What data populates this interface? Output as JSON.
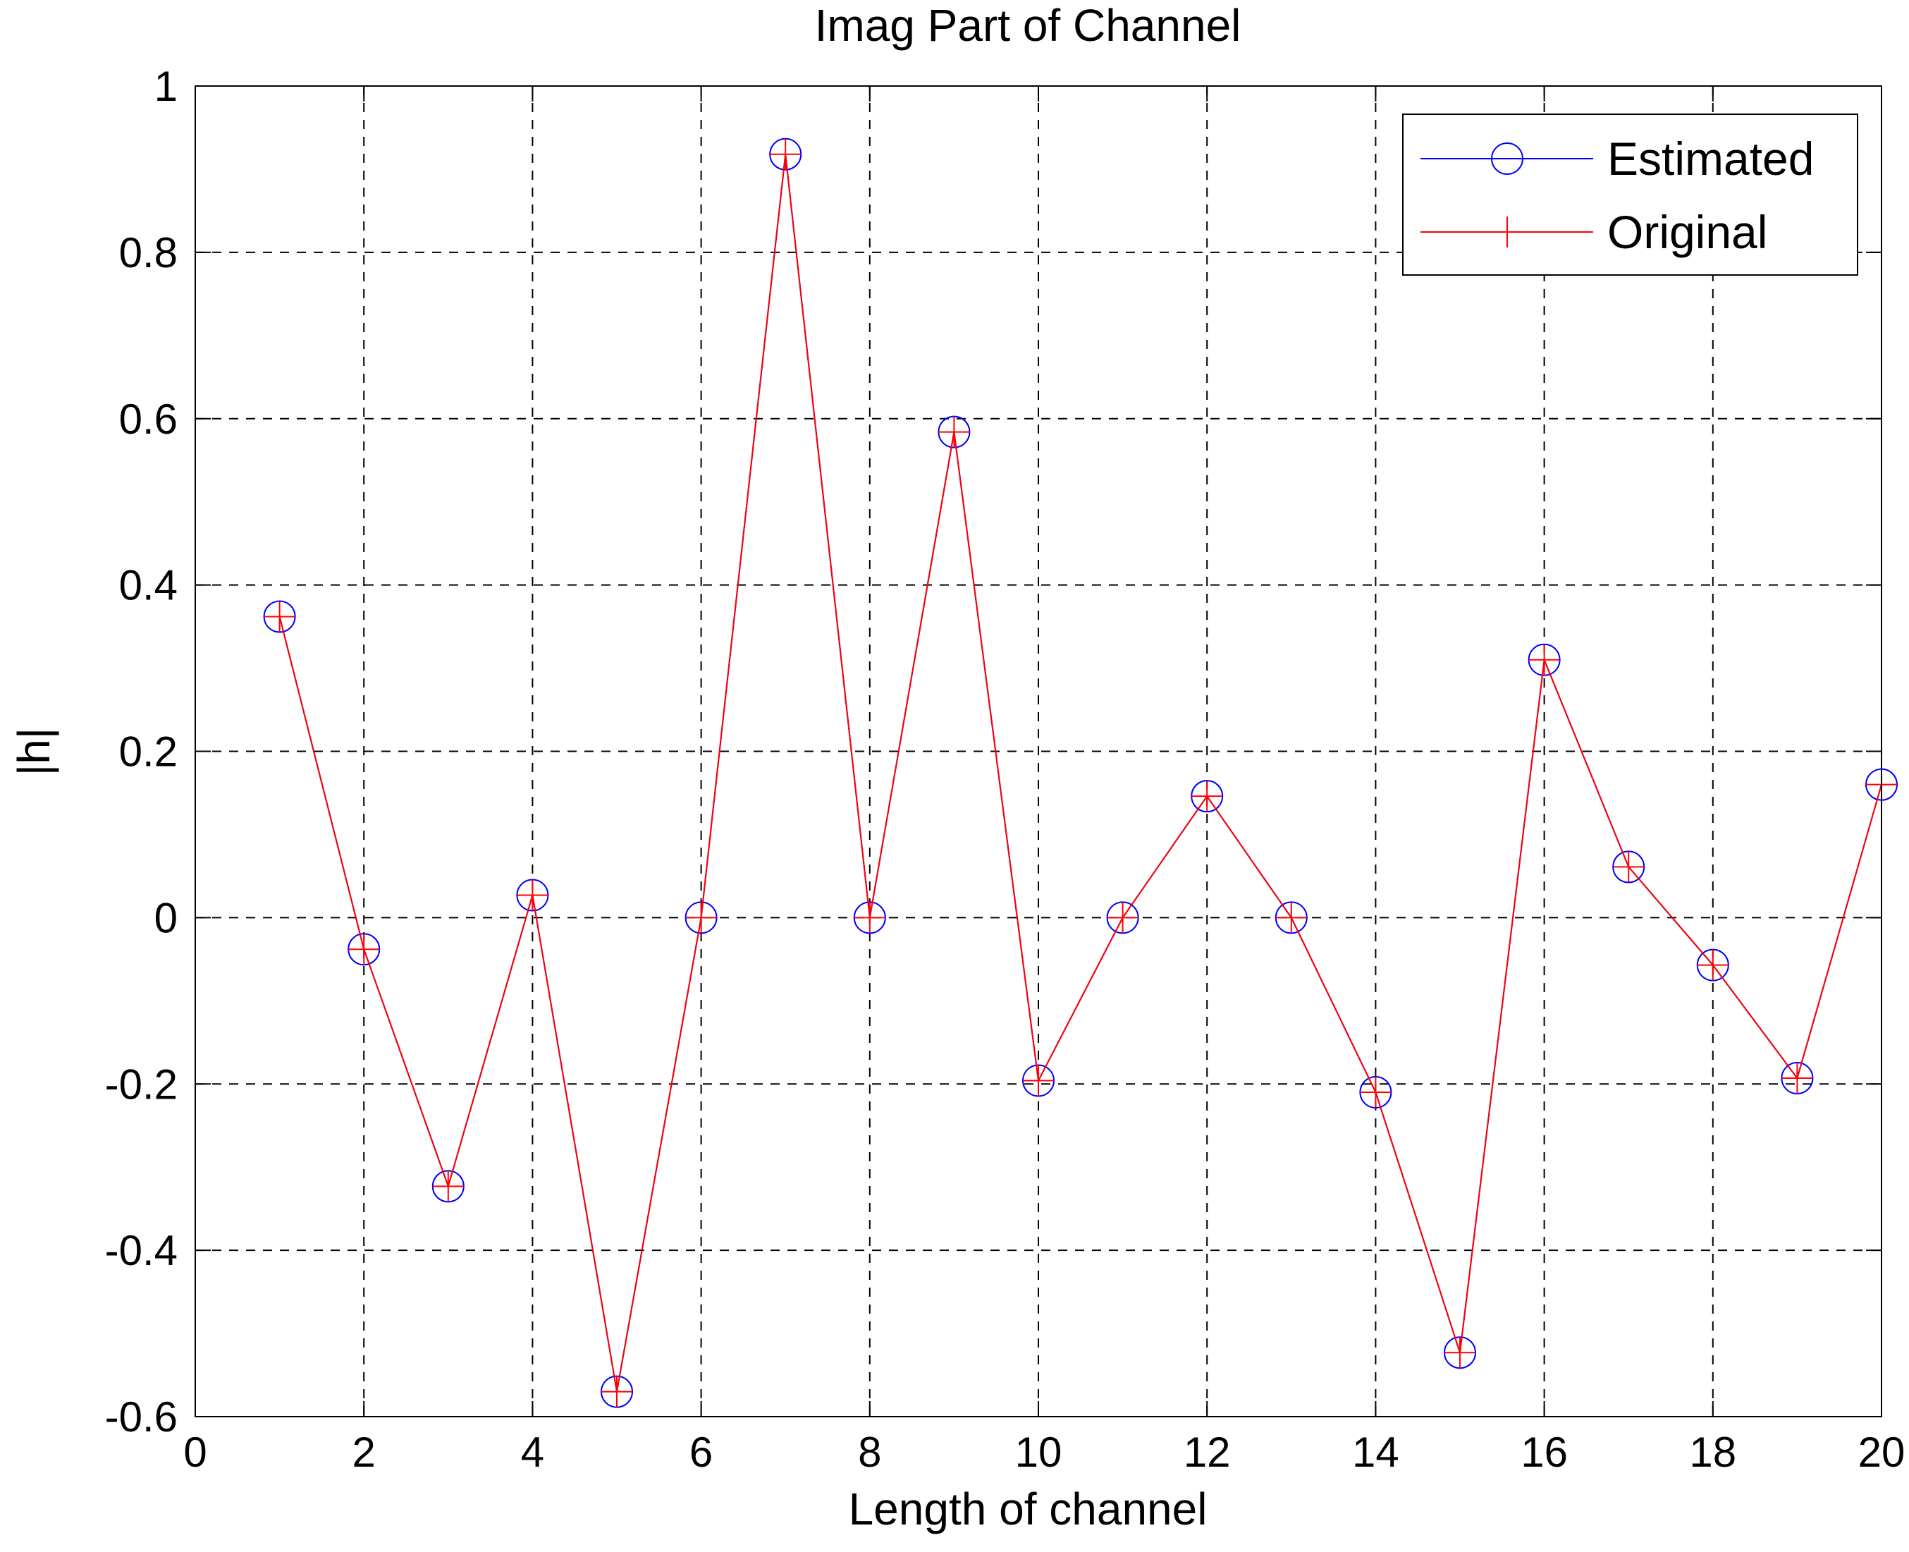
{
  "chart_data": {
    "type": "line",
    "title": "Imag Part of Channel",
    "xlabel": "Length of channel",
    "ylabel": "|h|",
    "xlim": [
      0,
      20
    ],
    "ylim": [
      -0.6,
      1
    ],
    "xticks": [
      0,
      2,
      4,
      6,
      8,
      10,
      12,
      14,
      16,
      18,
      20
    ],
    "yticks": [
      -0.6,
      -0.4,
      -0.2,
      0,
      0.2,
      0.4,
      0.6,
      0.8,
      1
    ],
    "xtick_labels": [
      "0",
      "2",
      "4",
      "6",
      "8",
      "10",
      "12",
      "14",
      "16",
      "18",
      "20"
    ],
    "ytick_labels": [
      "-0.6",
      "-0.4",
      "-0.2",
      "0",
      "0.2",
      "0.4",
      "0.6",
      "0.8",
      "1"
    ],
    "grid": true,
    "legend_position": "top-right",
    "x": [
      1,
      2,
      3,
      4,
      5,
      6,
      7,
      8,
      9,
      10,
      11,
      12,
      13,
      14,
      15,
      16,
      17,
      18,
      19,
      20
    ],
    "series": [
      {
        "name": "Estimated",
        "color": "#0000ff",
        "marker": "circle",
        "values": [
          0.362,
          -0.038,
          -0.323,
          0.027,
          -0.57,
          0.0,
          0.918,
          0.0,
          0.584,
          -0.196,
          0.0,
          0.146,
          0.0,
          -0.21,
          -0.523,
          0.31,
          0.061,
          -0.057,
          -0.193,
          0.16
        ]
      },
      {
        "name": "Original",
        "color": "#ff0000",
        "marker": "plus",
        "values": [
          0.362,
          -0.038,
          -0.323,
          0.027,
          -0.57,
          0.0,
          0.918,
          0.0,
          0.584,
          -0.196,
          0.0,
          0.146,
          0.0,
          -0.21,
          -0.523,
          0.31,
          0.061,
          -0.057,
          -0.193,
          0.16
        ]
      }
    ]
  }
}
